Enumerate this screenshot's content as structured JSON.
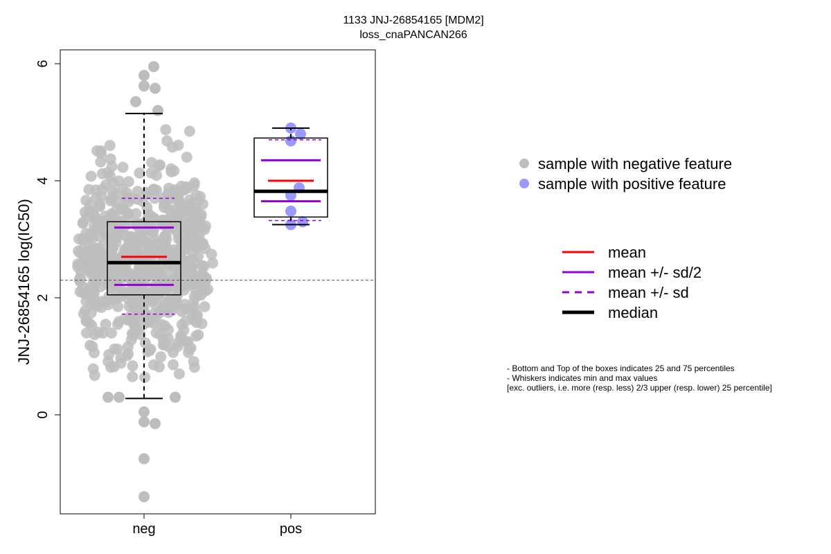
{
  "chart_data": {
    "type": "box",
    "title": [
      "1133 JNJ-26854165 [MDM2]",
      "loss_cnaPANCAN266"
    ],
    "ylabel": "JNJ-26854165 log(IC50)",
    "xlabel": "",
    "categories": [
      "neg",
      "pos"
    ],
    "ylim": [
      -1.7,
      6.25
    ],
    "yticks": [
      0,
      2,
      4,
      6
    ],
    "reference_line": 2.3,
    "colors": {
      "negative_points": "#bdbdbd",
      "positive_points": "#9999ff",
      "mean": "#ff0000",
      "sd": "#9400d3",
      "median": "#000000"
    },
    "groups": [
      {
        "name": "neg",
        "q1": 2.05,
        "median": 2.6,
        "q3": 3.3,
        "whisker_low": 0.28,
        "whisker_high": 5.15,
        "mean": 2.7,
        "mean_plus_half_sd": 3.2,
        "mean_minus_half_sd": 2.22,
        "mean_plus_sd": 3.7,
        "mean_minus_sd": 1.72,
        "n_points": 700,
        "points_y_notable": [
          5.95,
          5.8,
          5.62,
          5.58,
          5.35,
          5.2,
          0.3,
          0.3,
          0.3,
          0.05,
          -0.15,
          -0.12,
          -0.75,
          -1.4
        ]
      },
      {
        "name": "pos",
        "q1": 3.38,
        "median": 3.82,
        "q3": 4.73,
        "whisker_low": 3.25,
        "whisker_high": 4.9,
        "mean": 4.0,
        "mean_plus_half_sd": 4.35,
        "mean_minus_half_sd": 3.65,
        "mean_plus_sd": 4.7,
        "mean_minus_sd": 3.32,
        "points": [
          4.9,
          4.8,
          4.68,
          3.88,
          3.75,
          3.48,
          3.3,
          3.25
        ]
      }
    ],
    "legend_points": [
      {
        "label": "sample with negative feature",
        "color": "#bdbdbd"
      },
      {
        "label": "sample with positive feature",
        "color": "#9999ff"
      }
    ],
    "legend_lines": [
      {
        "label": "mean",
        "color": "#ff0000",
        "style": "solid"
      },
      {
        "label": "mean +/- sd/2",
        "color": "#9400d3",
        "style": "solid"
      },
      {
        "label": "mean +/- sd",
        "color": "#9400d3",
        "style": "dashed"
      },
      {
        "label": "median",
        "color": "#000000",
        "style": "bold"
      }
    ],
    "notes": [
      "- Bottom and Top of the boxes indicates 25 and 75 percentiles",
      "- Whiskers indicates min and max values",
      "[exc. outliers, i.e. more (resp. less) 2/3 upper (resp. lower) 25 percentile]"
    ]
  }
}
